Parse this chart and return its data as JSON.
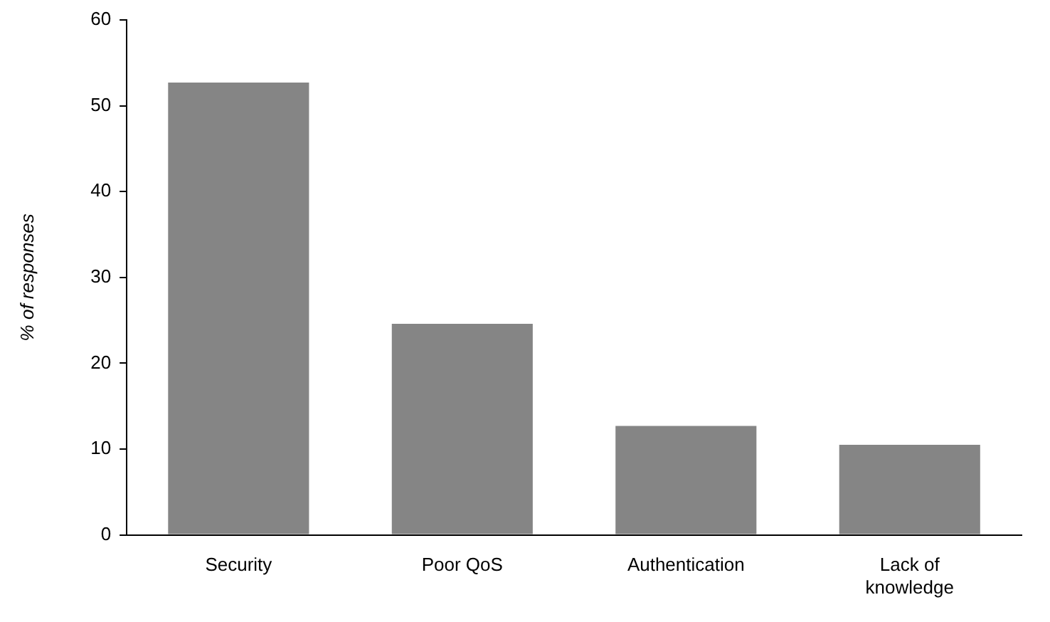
{
  "chart_data": {
    "type": "bar",
    "ylabel": "% of responses",
    "categories": [
      "Security",
      "Poor QoS",
      "Authentication",
      "Lack of knowledge"
    ],
    "values": [
      52.7,
      24.6,
      12.7,
      10.5
    ],
    "color": "#858585",
    "ylim": [
      0,
      60
    ],
    "yticks": [
      0,
      10,
      20,
      30,
      40,
      50,
      60
    ],
    "grid": false,
    "legend": false
  }
}
